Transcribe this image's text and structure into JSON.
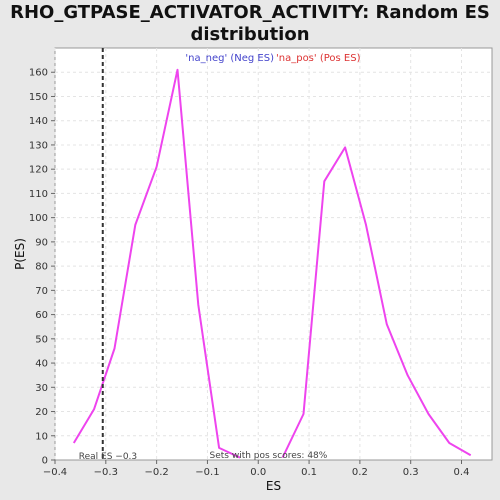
{
  "chart_data": {
    "type": "line",
    "title_line1": "RHO_GTPASE_ACTIVATOR_ACTIVITY: Random ES",
    "title_line2": "distribution",
    "xlabel": "ES",
    "ylabel": "P(ES)",
    "xlim": [
      -0.4,
      0.46
    ],
    "ylim": [
      0,
      170
    ],
    "xticks": [
      -0.4,
      -0.3,
      -0.2,
      -0.1,
      0.0,
      0.1,
      0.2,
      0.3,
      0.4
    ],
    "xtick_labels": [
      "−0.4",
      "−0.3",
      "−0.2",
      "−0.1",
      "0.0",
      "0.1",
      "0.2",
      "0.3",
      "0.4"
    ],
    "yticks": [
      0,
      10,
      20,
      30,
      40,
      50,
      60,
      70,
      80,
      90,
      100,
      110,
      120,
      130,
      140,
      150,
      160
    ],
    "grid": true,
    "legend": [
      {
        "label": "'na_neg' (Neg ES)",
        "color": "#4444cc"
      },
      {
        "label": "'na_pos' (Pos ES)",
        "color": "#dd3333"
      }
    ],
    "series": [
      {
        "color": "#ee44ee",
        "x": [
          -0.363,
          -0.323,
          -0.283,
          -0.242,
          -0.2,
          -0.159,
          -0.118,
          -0.077,
          -0.036
        ],
        "y": [
          7,
          21,
          46,
          97,
          121,
          161,
          64,
          5,
          1
        ]
      },
      {
        "color": "#ee44ee",
        "x": [
          0.048,
          0.089,
          0.13,
          0.171,
          0.212,
          0.253,
          0.294,
          0.335,
          0.376,
          0.418
        ],
        "y": [
          1,
          19,
          115,
          129,
          97,
          56,
          35,
          19,
          7,
          2
        ]
      }
    ],
    "real_es": {
      "x": -0.306,
      "label": "Real ES −0.3"
    },
    "pos_scores_label": "Sets with pos scores: 48%"
  }
}
